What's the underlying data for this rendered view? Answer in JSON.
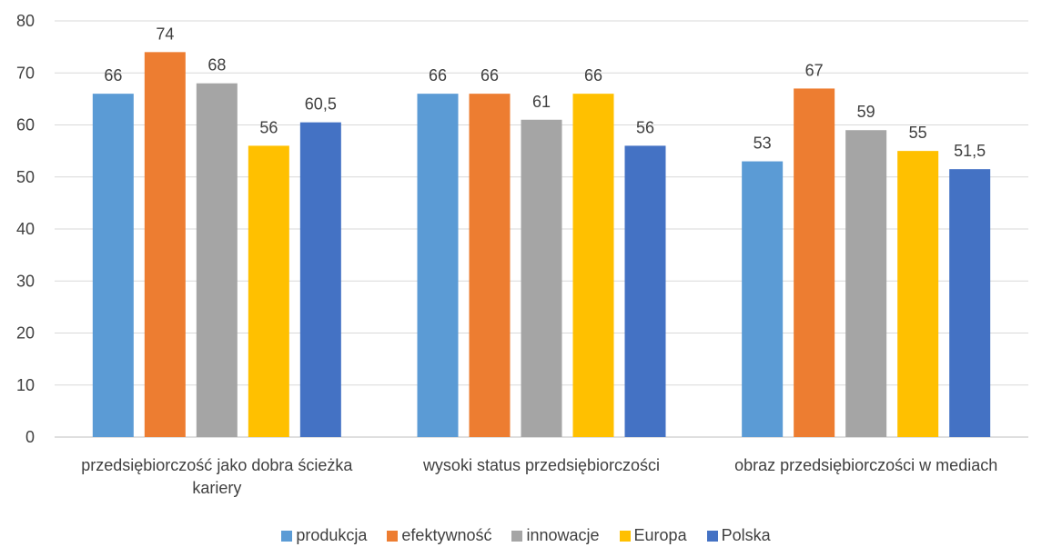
{
  "chart_data": {
    "type": "bar",
    "title": "",
    "xlabel": "",
    "ylabel": "",
    "ylim": [
      0,
      80
    ],
    "yticks": [
      "0",
      "10",
      "20",
      "30",
      "40",
      "50",
      "60",
      "70",
      "80"
    ],
    "grid": true,
    "legend_position": "bottom",
    "categories": [
      [
        "przedsiębiorczość jako dobra ścieżka",
        "kariery"
      ],
      [
        "wysoki status przedsiębiorczości"
      ],
      [
        "obraz przedsiębiorczości w mediach"
      ]
    ],
    "series": [
      {
        "name": "produkcja",
        "color": "#5B9BD5",
        "values": [
          66,
          66,
          53
        ],
        "labels": [
          "66",
          "66",
          "53"
        ]
      },
      {
        "name": "efektywność",
        "color": "#ED7D31",
        "values": [
          74,
          66,
          67
        ],
        "labels": [
          "74",
          "66",
          "67"
        ]
      },
      {
        "name": "innowacje",
        "color": "#A5A5A5",
        "values": [
          68,
          61,
          59
        ],
        "labels": [
          "68",
          "61",
          "59"
        ]
      },
      {
        "name": "Europa",
        "color": "#FFC000",
        "values": [
          56,
          66,
          55
        ],
        "labels": [
          "56",
          "66",
          "55"
        ]
      },
      {
        "name": "Polska",
        "color": "#4472C4",
        "values": [
          60.5,
          56,
          51.5
        ],
        "labels": [
          "60,5",
          "56",
          "51,5"
        ]
      }
    ]
  }
}
